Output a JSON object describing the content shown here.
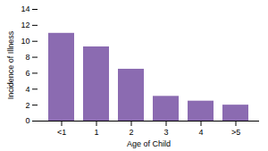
{
  "chart_data": {
    "type": "bar",
    "categories": [
      "<1",
      "1",
      "2",
      "3",
      "4",
      ">5"
    ],
    "values": [
      11.0,
      9.3,
      6.5,
      3.1,
      2.5,
      2.0
    ],
    "color": "#8B6BB1",
    "xlabel": "Age of Child",
    "ylabel": "Incidence of Illness",
    "ylim": [
      0,
      14
    ],
    "yticks": [
      0,
      2,
      4,
      6,
      8,
      10,
      12,
      14
    ],
    "grid": false
  }
}
